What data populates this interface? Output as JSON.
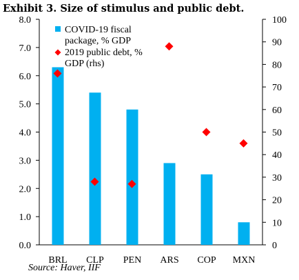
{
  "chart_data": {
    "type": "bar",
    "title": "Exhibit 3. Size of stimulus and public debt.",
    "categories": [
      "BRL",
      "CLP",
      "PEN",
      "ARS",
      "COP",
      "MXN"
    ],
    "series": [
      {
        "name": "COVID-19 fiscal package, % GDP",
        "kind": "bar",
        "axis": "left",
        "color": "#00b0f0",
        "values": [
          6.3,
          5.4,
          4.8,
          2.9,
          2.5,
          0.8
        ]
      },
      {
        "name": "2019 public debt, % GDP (rhs)",
        "kind": "scatter",
        "marker": "diamond",
        "axis": "right",
        "color": "#ff0000",
        "values": [
          76,
          28,
          27,
          88,
          50,
          45
        ]
      }
    ],
    "ylim_left": [
      0,
      8
    ],
    "ylim_right": [
      0,
      100
    ],
    "yticks_left": [
      "0.0",
      "1.0",
      "2.0",
      "3.0",
      "4.0",
      "5.0",
      "6.0",
      "7.0",
      "8.0"
    ],
    "yticks_right": [
      "0",
      "10",
      "20",
      "30",
      "40",
      "50",
      "60",
      "70",
      "80",
      "90",
      "100"
    ],
    "legend": {
      "placement": "top-left",
      "entries": [
        [
          "COVID-19 fiscal",
          "package, % GDP"
        ],
        [
          "2019 public debt, %",
          "GDP (rhs)"
        ]
      ]
    },
    "grid": false,
    "source": "Source: Haver, IIF"
  }
}
